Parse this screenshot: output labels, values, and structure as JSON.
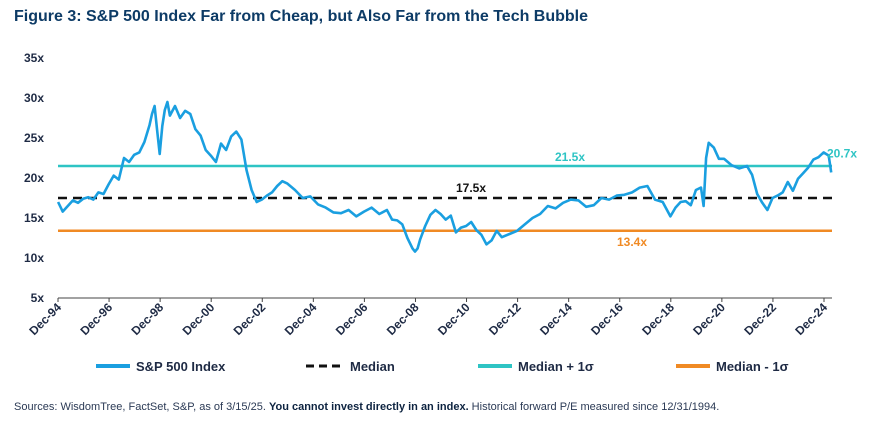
{
  "title": "Figure 3: S&P 500 Index Far from Cheap, but Also Far from the Tech Bubble",
  "source": {
    "prefix": "Sources: WisdomTree, FactSet, S&P, as of 3/15/25. ",
    "bold": "You cannot invest directly in an index.",
    "suffix": " Historical forward P/E measured since 12/31/1994."
  },
  "chart_data": {
    "type": "line",
    "x_start_year": 1994.917,
    "ylim": [
      5,
      35
    ],
    "yticks": [
      5,
      10,
      15,
      20,
      25,
      30,
      35
    ],
    "ytick_labels": [
      "5x",
      "10x",
      "15x",
      "20x",
      "25x",
      "30x",
      "35x"
    ],
    "xticks": [
      1994.917,
      1996.917,
      1998.917,
      2000.917,
      2002.917,
      2004.917,
      2006.917,
      2008.917,
      2010.917,
      2012.917,
      2014.917,
      2016.917,
      2018.917,
      2020.917,
      2022.917,
      2024.917
    ],
    "xtick_labels": [
      "Dec-94",
      "Dec-96",
      "Dec-98",
      "Dec-00",
      "Dec-02",
      "Dec-04",
      "Dec-06",
      "Dec-08",
      "Dec-10",
      "Dec-12",
      "Dec-14",
      "Dec-16",
      "Dec-18",
      "Dec-20",
      "Dec-22",
      "Dec-24"
    ],
    "xlim": [
      1994.917,
      2025.2
    ],
    "colors": {
      "index": "#1a9fe0",
      "median": "#111111",
      "plus": "#2ec4c4",
      "minus": "#f08a24"
    },
    "series": [
      {
        "name": "S&P 500 Index",
        "x": [
          1994.92,
          1995.1,
          1995.3,
          1995.5,
          1995.7,
          1995.9,
          1996.1,
          1996.3,
          1996.5,
          1996.7,
          1996.9,
          1997.1,
          1997.3,
          1997.5,
          1997.7,
          1997.9,
          1998.1,
          1998.3,
          1998.5,
          1998.6,
          1998.7,
          1998.8,
          1998.9,
          1999.0,
          1999.1,
          1999.2,
          1999.3,
          1999.5,
          1999.7,
          1999.9,
          2000.1,
          2000.3,
          2000.5,
          2000.7,
          2000.9,
          2001.1,
          2001.3,
          2001.5,
          2001.7,
          2001.9,
          2002.1,
          2002.3,
          2002.5,
          2002.7,
          2002.9,
          2003.1,
          2003.3,
          2003.5,
          2003.7,
          2003.9,
          2004.2,
          2004.5,
          2004.8,
          2005.1,
          2005.4,
          2005.7,
          2006.0,
          2006.3,
          2006.6,
          2006.9,
          2007.2,
          2007.5,
          2007.8,
          2008.0,
          2008.2,
          2008.4,
          2008.6,
          2008.8,
          2008.9,
          2009.0,
          2009.1,
          2009.3,
          2009.5,
          2009.7,
          2009.9,
          2010.1,
          2010.3,
          2010.5,
          2010.7,
          2010.9,
          2011.1,
          2011.3,
          2011.5,
          2011.7,
          2011.9,
          2012.1,
          2012.3,
          2012.6,
          2012.9,
          2013.2,
          2013.5,
          2013.8,
          2014.1,
          2014.4,
          2014.7,
          2015.0,
          2015.3,
          2015.6,
          2015.9,
          2016.2,
          2016.5,
          2016.8,
          2017.1,
          2017.4,
          2017.7,
          2018.0,
          2018.3,
          2018.6,
          2018.9,
          2019.1,
          2019.3,
          2019.5,
          2019.7,
          2019.9,
          2020.1,
          2020.2,
          2020.3,
          2020.4,
          2020.6,
          2020.8,
          2021.0,
          2021.3,
          2021.6,
          2021.9,
          2022.1,
          2022.3,
          2022.5,
          2022.7,
          2022.9,
          2023.1,
          2023.3,
          2023.5,
          2023.7,
          2023.9,
          2024.1,
          2024.3,
          2024.5,
          2024.7,
          2024.9,
          2025.1,
          2025.2
        ],
        "values": [
          17.0,
          15.8,
          16.5,
          17.2,
          16.9,
          17.4,
          17.6,
          17.3,
          18.2,
          18.0,
          19.2,
          20.3,
          19.8,
          22.5,
          22.0,
          22.9,
          23.2,
          24.5,
          26.6,
          28.0,
          29.0,
          26.0,
          23.0,
          26.5,
          28.5,
          29.5,
          27.8,
          29.0,
          27.5,
          28.4,
          28.0,
          26.1,
          25.3,
          23.5,
          22.8,
          22.0,
          24.3,
          23.5,
          25.2,
          25.8,
          24.8,
          21.0,
          18.5,
          17.0,
          17.3,
          17.8,
          18.2,
          19.0,
          19.6,
          19.3,
          18.5,
          17.5,
          17.7,
          16.7,
          16.3,
          15.7,
          15.6,
          16.0,
          15.2,
          15.8,
          16.3,
          15.5,
          16.0,
          14.8,
          14.7,
          14.2,
          12.5,
          11.2,
          10.8,
          11.2,
          12.3,
          14.0,
          15.4,
          16.0,
          15.5,
          14.8,
          15.3,
          13.2,
          13.8,
          14.0,
          14.5,
          13.5,
          12.9,
          11.7,
          12.2,
          13.4,
          12.6,
          13.0,
          13.4,
          14.2,
          15.0,
          15.5,
          16.5,
          16.2,
          16.9,
          17.3,
          17.2,
          16.4,
          16.6,
          17.5,
          17.3,
          17.8,
          17.9,
          18.2,
          18.8,
          19.0,
          17.3,
          17.0,
          15.2,
          16.3,
          17.0,
          17.1,
          16.6,
          18.5,
          18.8,
          16.5,
          22.5,
          24.4,
          23.8,
          22.4,
          22.4,
          21.6,
          21.2,
          21.5,
          20.4,
          18.0,
          16.9,
          16.0,
          17.5,
          17.8,
          18.2,
          19.5,
          18.4,
          19.9,
          20.6,
          21.3,
          22.3,
          22.6,
          23.2,
          22.8,
          20.7
        ]
      },
      {
        "name": "Median",
        "value": 17.5,
        "label": "17.5x"
      },
      {
        "name": "Median + 1σ",
        "value": 21.5,
        "label": "21.5x"
      },
      {
        "name": "Median - 1σ",
        "value": 13.4,
        "label": "13.4x"
      }
    ],
    "last_value_label": "20.7x",
    "legend_placement": "bottom"
  }
}
